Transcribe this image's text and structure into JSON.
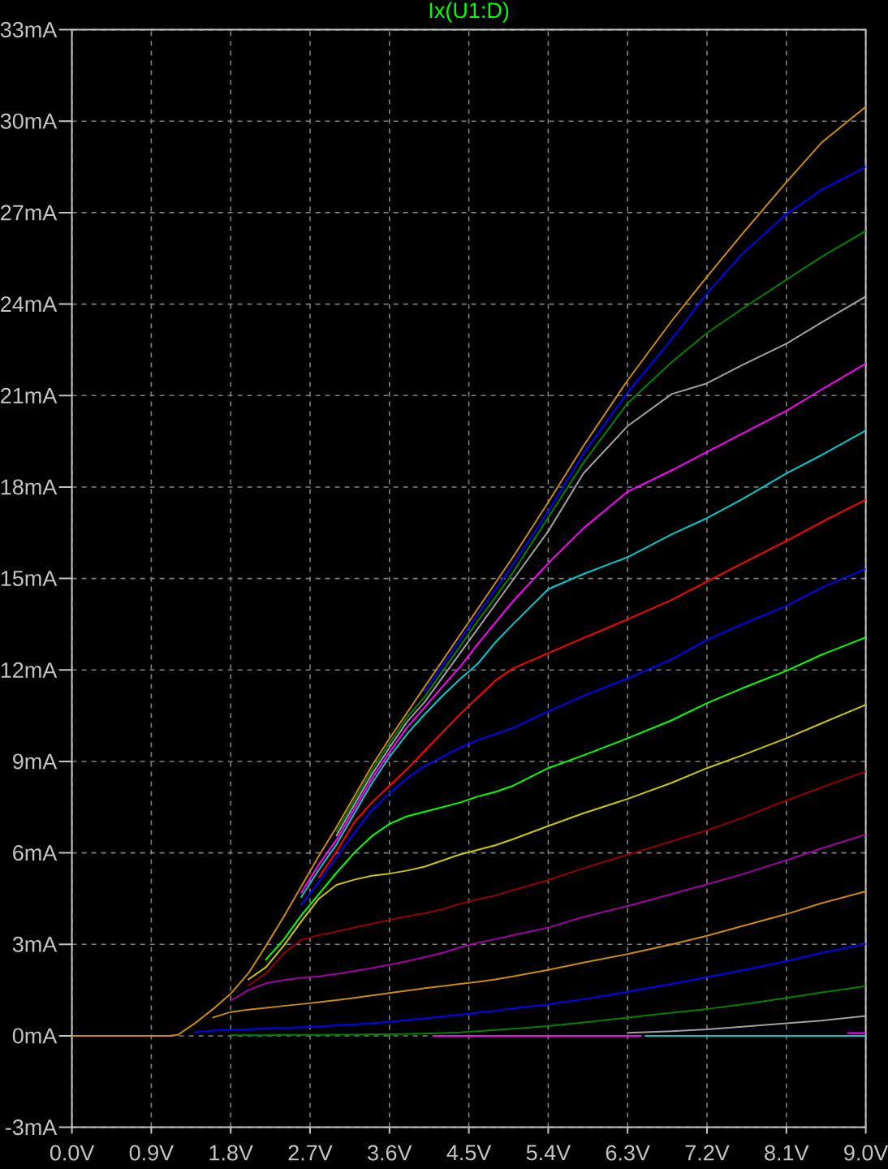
{
  "chart_data": {
    "type": "line",
    "title": "Ix(U1:D)",
    "x": [
      0,
      1.1,
      1.2,
      1.4,
      1.6,
      1.8,
      2.0,
      2.2,
      2.4,
      2.6,
      2.8,
      3.0,
      3.2,
      3.4,
      3.6,
      3.8,
      4.0,
      4.2,
      4.4,
      4.6,
      4.8,
      5.0,
      5.4,
      5.8,
      6.3,
      6.8,
      7.2,
      7.6,
      8.1,
      8.5,
      9.0
    ],
    "xlim": [
      0,
      9
    ],
    "ylim": [
      -3,
      33
    ],
    "xticks": [
      {
        "value": 0,
        "label": "0.0V"
      },
      {
        "value": 0.9,
        "label": "0.9V"
      },
      {
        "value": 1.8,
        "label": "1.8V"
      },
      {
        "value": 2.7,
        "label": "2.7V"
      },
      {
        "value": 3.6,
        "label": "3.6V"
      },
      {
        "value": 4.5,
        "label": "4.5V"
      },
      {
        "value": 5.4,
        "label": "5.4V"
      },
      {
        "value": 6.3,
        "label": "6.3V"
      },
      {
        "value": 7.2,
        "label": "7.2V"
      },
      {
        "value": 8.1,
        "label": "8.1V"
      },
      {
        "value": 9.0,
        "label": "9.0V"
      }
    ],
    "yticks": [
      {
        "value": -3,
        "label": "-3mA"
      },
      {
        "value": 0,
        "label": "0mA"
      },
      {
        "value": 3,
        "label": "3mA"
      },
      {
        "value": 6,
        "label": "6mA"
      },
      {
        "value": 9,
        "label": "9mA"
      },
      {
        "value": 12,
        "label": "12mA"
      },
      {
        "value": 15,
        "label": "15mA"
      },
      {
        "value": 18,
        "label": "18mA"
      },
      {
        "value": 21,
        "label": "21mA"
      },
      {
        "value": 24,
        "label": "24mA"
      },
      {
        "value": 27,
        "label": "27mA"
      },
      {
        "value": 30,
        "label": "30mA"
      },
      {
        "value": 33,
        "label": "33mA"
      }
    ],
    "grid": true,
    "line_style": "solid",
    "series": [
      {
        "color": "#ff00ff",
        "x": [
          4.1,
          6.45,
          6.5,
          8.8,
          9.0
        ],
        "values": [
          0,
          0,
          null,
          0.09,
          0.09
        ]
      },
      {
        "color": "#00c8c8",
        "x": [
          6.5,
          9.0
        ],
        "values": [
          0,
          0
        ]
      },
      {
        "color": "#a0a0a0",
        "x": [
          6.3,
          6.8,
          7.2,
          7.6,
          8.1,
          8.5,
          9.0
        ],
        "values": [
          0.1,
          0.15,
          0.21,
          0.3,
          0.41,
          0.5,
          0.65
        ]
      },
      {
        "color": "#008000",
        "values": [
          null,
          null,
          null,
          null,
          null,
          0.02,
          0.02,
          0.02,
          0.03,
          0.03,
          0.03,
          0.04,
          0.04,
          0.05,
          0.05,
          0.06,
          0.07,
          0.09,
          0.11,
          0.15,
          0.19,
          0.23,
          0.32,
          0.44,
          0.6,
          0.76,
          0.88,
          1.03,
          1.24,
          1.42,
          1.63
        ]
      },
      {
        "color": "#0000ff",
        "values": [
          null,
          null,
          null,
          0.12,
          0.17,
          0.2,
          0.22,
          0.24,
          0.26,
          0.28,
          0.31,
          0.34,
          0.37,
          0.41,
          0.46,
          0.52,
          0.57,
          0.63,
          0.69,
          0.76,
          0.82,
          0.9,
          1.03,
          1.2,
          1.44,
          1.7,
          1.92,
          2.15,
          2.45,
          2.72,
          3.01
        ]
      },
      {
        "color": "#c88c10",
        "values": [
          null,
          null,
          null,
          null,
          0.6,
          0.78,
          0.86,
          0.92,
          0.98,
          1.04,
          1.1,
          1.17,
          1.24,
          1.32,
          1.4,
          1.48,
          1.56,
          1.63,
          1.7,
          1.77,
          1.85,
          1.95,
          2.16,
          2.4,
          2.68,
          3.0,
          3.28,
          3.6,
          3.99,
          4.35,
          4.74
        ]
      },
      {
        "color": "#a000a0",
        "values": [
          null,
          null,
          null,
          null,
          null,
          1.15,
          1.5,
          1.72,
          1.83,
          1.9,
          1.95,
          2.03,
          2.12,
          2.22,
          2.33,
          2.45,
          2.58,
          2.72,
          2.9,
          3.05,
          3.17,
          3.3,
          3.55,
          3.9,
          4.26,
          4.65,
          4.97,
          5.3,
          5.76,
          6.15,
          6.6
        ]
      },
      {
        "color": "#900000",
        "values": [
          null,
          null,
          null,
          null,
          null,
          null,
          1.65,
          2.05,
          2.7,
          3.15,
          3.3,
          3.42,
          3.55,
          3.68,
          3.8,
          3.92,
          4.02,
          4.15,
          4.33,
          4.48,
          4.6,
          4.78,
          5.11,
          5.5,
          5.94,
          6.38,
          6.74,
          7.15,
          7.72,
          8.15,
          8.67
        ]
      },
      {
        "color": "#c8c800",
        "values": [
          null,
          null,
          null,
          null,
          null,
          null,
          1.85,
          2.25,
          2.95,
          3.75,
          4.5,
          4.95,
          5.12,
          5.25,
          5.32,
          5.42,
          5.55,
          5.75,
          5.95,
          6.1,
          6.25,
          6.45,
          6.88,
          7.3,
          7.77,
          8.3,
          8.78,
          9.2,
          9.76,
          10.25,
          10.86
        ]
      },
      {
        "color": "#00ff00",
        "values": [
          null,
          null,
          null,
          null,
          null,
          null,
          null,
          2.5,
          3.15,
          3.95,
          4.65,
          5.35,
          6.0,
          6.55,
          6.95,
          7.2,
          7.35,
          7.5,
          7.65,
          7.85,
          8.0,
          8.2,
          8.78,
          9.2,
          9.76,
          10.35,
          10.91,
          11.4,
          11.97,
          12.5,
          13.07
        ]
      },
      {
        "color": "#0000ff",
        "values": [
          null,
          null,
          null,
          null,
          null,
          null,
          null,
          null,
          null,
          4.3,
          5.05,
          5.85,
          6.65,
          7.4,
          7.95,
          8.45,
          8.85,
          9.15,
          9.45,
          9.7,
          9.9,
          10.1,
          10.64,
          11.15,
          11.72,
          12.35,
          12.99,
          13.5,
          14.1,
          14.7,
          15.31
        ]
      },
      {
        "color": "#ff0000",
        "values": [
          null,
          null,
          null,
          null,
          null,
          null,
          null,
          null,
          null,
          null,
          5.2,
          6.05,
          7.0,
          7.65,
          8.2,
          8.75,
          9.35,
          9.95,
          10.55,
          11.1,
          11.65,
          12.05,
          12.55,
          13.05,
          13.66,
          14.3,
          14.9,
          15.5,
          16.23,
          16.85,
          17.58
        ]
      },
      {
        "color": "#00c8c8",
        "values": [
          null,
          null,
          null,
          null,
          null,
          null,
          null,
          null,
          null,
          4.55,
          5.45,
          6.28,
          7.28,
          8.28,
          9.15,
          9.9,
          10.55,
          11.15,
          11.7,
          12.2,
          12.9,
          13.5,
          14.65,
          15.15,
          15.7,
          16.45,
          16.98,
          17.6,
          18.45,
          19.05,
          19.85
        ]
      },
      {
        "color": "#ff00ff",
        "values": [
          null,
          null,
          null,
          null,
          null,
          null,
          null,
          null,
          null,
          4.7,
          5.62,
          6.43,
          7.43,
          8.43,
          9.3,
          10.12,
          10.78,
          11.45,
          12.1,
          12.85,
          13.55,
          14.25,
          15.5,
          16.65,
          17.85,
          18.55,
          19.15,
          19.75,
          20.5,
          21.2,
          22.05
        ]
      },
      {
        "color": "#a0a0a0",
        "values": [
          null,
          null,
          null,
          null,
          null,
          null,
          null,
          null,
          null,
          null,
          null,
          6.57,
          7.57,
          8.57,
          9.45,
          10.3,
          10.95,
          11.75,
          12.55,
          13.35,
          14.15,
          14.95,
          16.55,
          18.45,
          20.0,
          21.05,
          21.4,
          22.0,
          22.7,
          23.4,
          24.25
        ]
      },
      {
        "color": "#008000",
        "values": [
          null,
          null,
          null,
          null,
          null,
          null,
          null,
          null,
          null,
          null,
          null,
          6.71,
          7.71,
          8.71,
          9.6,
          10.45,
          11.12,
          11.95,
          12.77,
          13.6,
          14.38,
          15.2,
          17.0,
          18.8,
          20.75,
          22.1,
          23.05,
          23.85,
          24.8,
          25.55,
          26.4
        ]
      },
      {
        "color": "#0000ff",
        "values": [
          null,
          null,
          null,
          null,
          null,
          null,
          null,
          null,
          null,
          null,
          null,
          null,
          null,
          null,
          null,
          null,
          11.3,
          12.15,
          12.98,
          13.82,
          14.63,
          15.45,
          17.2,
          19.1,
          21.1,
          22.85,
          24.35,
          25.65,
          26.95,
          27.75,
          28.5
        ]
      },
      {
        "color": "#c88c10",
        "values": [
          0,
          0,
          0.03,
          0.42,
          0.88,
          1.38,
          2.05,
          2.95,
          3.9,
          4.9,
          5.9,
          6.85,
          7.85,
          8.85,
          9.75,
          10.6,
          11.45,
          12.3,
          13.15,
          14.0,
          14.85,
          15.7,
          17.5,
          19.35,
          21.5,
          23.45,
          24.9,
          26.3,
          28.0,
          29.3,
          30.47
        ]
      }
    ]
  }
}
